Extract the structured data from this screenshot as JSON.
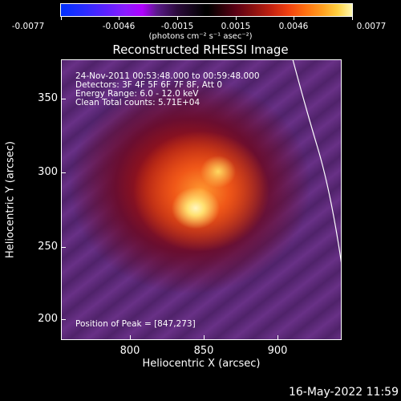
{
  "colorbar": {
    "labels": [
      "-0.0077",
      "-0.0046",
      "-0.0015",
      "0.0015",
      "0.0046",
      "0.0077"
    ],
    "units": "(photons cm⁻² s⁻¹ asec⁻²)",
    "colors": {
      "min": "#0030ff",
      "mid": "#000000",
      "max": "#fff8b0"
    }
  },
  "plot": {
    "title": "Reconstructed RHESSI Image",
    "info_lines": [
      "24-Nov-2011 00:53:48.000 to 00:59:48.000",
      "Detectors: 3F 4F 5F 6F 7F 8F, Att 0",
      "Energy Range: 6.0 - 12.0 keV",
      "Clean     Total counts: 5.71E+04"
    ],
    "peak_label": "Position of Peak = [847,273]",
    "x_axis_title": "Heliocentric X (arcsec)",
    "y_axis_title": "Heliocentric Y (arcsec)",
    "x_ticks": [
      "800",
      "850",
      "900"
    ],
    "y_ticks": [
      "350",
      "300",
      "250",
      "200"
    ],
    "limb_line": "solar limb"
  },
  "footer": {
    "timestamp": "16-May-2022 11:59"
  }
}
